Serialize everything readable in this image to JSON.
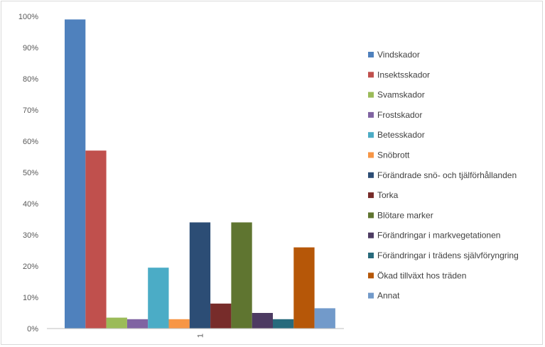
{
  "chart_data": {
    "type": "bar",
    "categories": [
      "1"
    ],
    "ylim": [
      0,
      100
    ],
    "y_ticks": [
      "0%",
      "10%",
      "20%",
      "30%",
      "40%",
      "50%",
      "60%",
      "70%",
      "80%",
      "90%",
      "100%"
    ],
    "grid": false,
    "legend_position": "right",
    "series": [
      {
        "name": "Vindskador",
        "value": 99,
        "color": "#4f81bd"
      },
      {
        "name": "Insektsskador",
        "value": 57,
        "color": "#c0504d"
      },
      {
        "name": "Svamskador",
        "value": 3.5,
        "color": "#9bbb59"
      },
      {
        "name": "Frostskador",
        "value": 3,
        "color": "#8064a2"
      },
      {
        "name": "Betesskador",
        "value": 19.5,
        "color": "#4bacc6"
      },
      {
        "name": "Snöbrott",
        "value": 3,
        "color": "#f79646"
      },
      {
        "name": "Förändrade snö- och tjälförhållanden",
        "value": 34,
        "color": "#2c4d75"
      },
      {
        "name": "Torka",
        "value": 8,
        "color": "#772c2a"
      },
      {
        "name": "Blötare marker",
        "value": 34,
        "color": "#5f7530"
      },
      {
        "name": "Förändringar i markvegetationen",
        "value": 5,
        "color": "#4d3b62"
      },
      {
        "name": "Förändringar i trädens självföryngring",
        "value": 3,
        "color": "#276a7c"
      },
      {
        "name": "Ökad tillväxt hos träden",
        "value": 26,
        "color": "#b65708"
      },
      {
        "name": "Annat",
        "value": 6.5,
        "color": "#729aca"
      }
    ]
  }
}
